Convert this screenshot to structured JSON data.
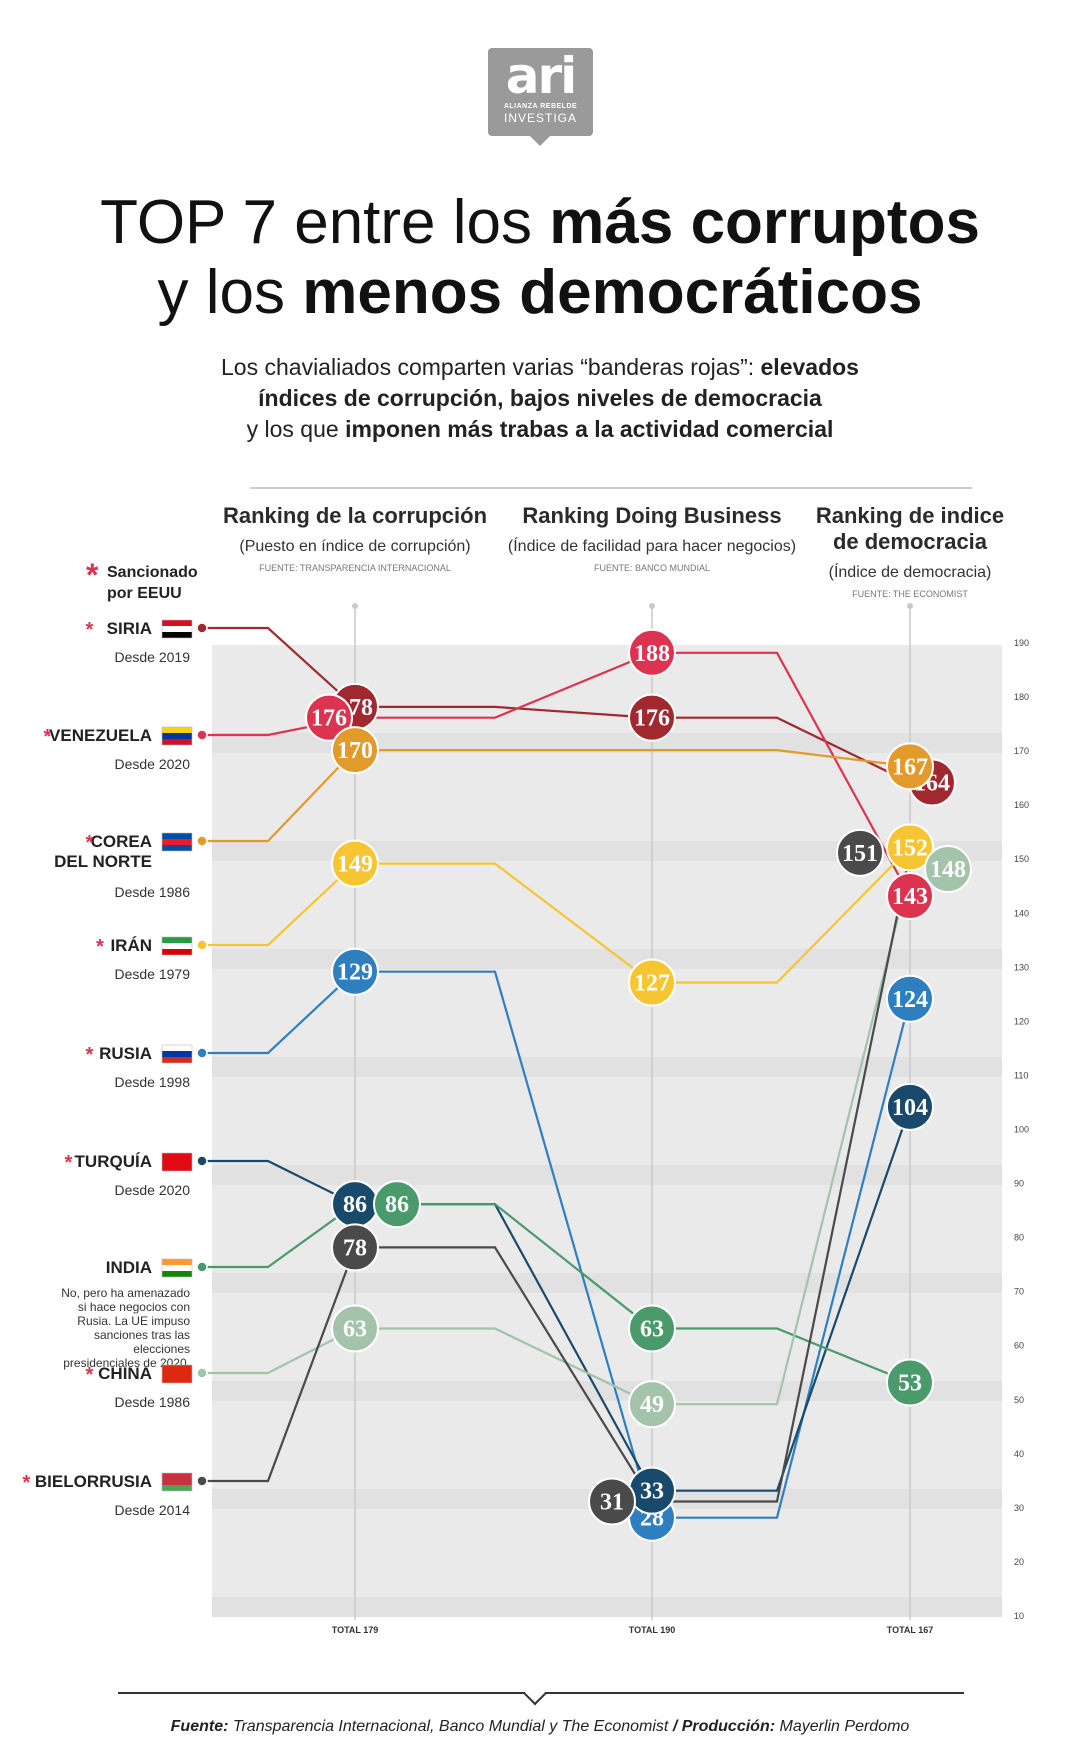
{
  "logo": {
    "main": "ari",
    "line1": "ALIANZA REBELDE",
    "line2": "INVESTIGA"
  },
  "title": {
    "part1": "TOP 7 entre los ",
    "bold1": "más corruptos",
    "part2": "y los ",
    "bold2": "menos democráticos"
  },
  "subtitle": {
    "t1": "Los chavialiados comparten varias “banderas rojas”: ",
    "b1": "elevados",
    "b2": "índices de corrupción, bajos niveles de democracia",
    "t3": "y los que ",
    "b3": "imponen más trabas a la actividad comercial"
  },
  "legend": {
    "line1": "Sancionado",
    "line2": "por EEUU"
  },
  "footer": {
    "source_label": "Fuente:",
    "source_text": " Transparencia Internacional, Banco Mundial y The Economist ",
    "slash": "/",
    "prod_label": " Producción:",
    "prod_text": " Mayerlin Perdomo"
  },
  "chart_data": {
    "type": "line",
    "columns": [
      {
        "title_lines": [
          "Ranking de la corrupción"
        ],
        "subtitle": "(Puesto en índice de corrupción)",
        "source": "FUENTE: TRANSPARENCIA INTERNACIONAL",
        "total": "TOTAL 179"
      },
      {
        "title_lines": [
          "Ranking Doing Business"
        ],
        "subtitle": "(Índice de facilidad para hacer negocios)",
        "source": "FUENTE: BANCO MUNDIAL",
        "total": "TOTAL 190"
      },
      {
        "title_lines": [
          "Ranking de indice",
          "de democracia"
        ],
        "subtitle": "(Índice de democracia)",
        "source": "FUENTE: THE ECONOMIST",
        "total": "TOTAL 167"
      }
    ],
    "ylim": [
      10,
      190
    ],
    "yticks": [
      10,
      20,
      30,
      40,
      50,
      60,
      70,
      80,
      90,
      100,
      110,
      120,
      130,
      140,
      150,
      160,
      170,
      180,
      190
    ],
    "series": [
      {
        "name": "SIRIA",
        "since": "Desde 2019",
        "sanctioned": true,
        "color": "#a0282f",
        "values": [
          178,
          176,
          164
        ]
      },
      {
        "name": "VENEZUELA",
        "since": "Desde 2020",
        "sanctioned": true,
        "color": "#dc3350",
        "values": [
          176,
          188,
          143
        ]
      },
      {
        "name": "COREA\nDEL NORTE",
        "since": "Desde 1986",
        "sanctioned": true,
        "color": "#e29a2a",
        "values": [
          170,
          null,
          167
        ]
      },
      {
        "name": "IRÁN",
        "since": "Desde 1979",
        "sanctioned": true,
        "color": "#f7c531",
        "values": [
          149,
          127,
          152
        ]
      },
      {
        "name": "RUSIA",
        "since": "Desde 1998",
        "sanctioned": true,
        "color": "#2f7fc0",
        "values": [
          129,
          28,
          124
        ]
      },
      {
        "name": "TURQUÍA",
        "since": "Desde 2020",
        "sanctioned": true,
        "color": "#1a4a6b",
        "values": [
          86,
          33,
          104
        ]
      },
      {
        "name": "INDIA",
        "since": "No, pero ha amenazado si hace negocios con Rusia. La UE impuso sanciones tras las elecciones presidenciales de 2020.",
        "sanctioned": false,
        "color": "#4a9a6b",
        "values": [
          86,
          63,
          53
        ]
      },
      {
        "name": "CHINA",
        "since": "Desde 1986",
        "sanctioned": true,
        "color": "#a3c3ab",
        "values": [
          63,
          49,
          148
        ]
      },
      {
        "name": "BIELORRUSIA",
        "since": "Desde 2014",
        "sanctioned": true,
        "color": "#4a4a4a",
        "values": [
          78,
          31,
          151
        ]
      }
    ]
  }
}
